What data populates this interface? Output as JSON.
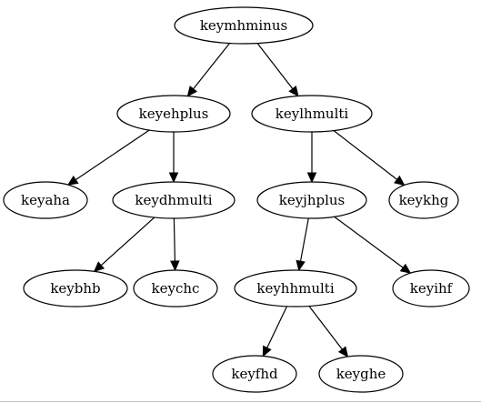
{
  "diagram": {
    "nodes": [
      {
        "id": "keymhminus",
        "label": "keymhminus"
      },
      {
        "id": "keyehplus",
        "label": "keyehplus"
      },
      {
        "id": "keylhmulti",
        "label": "keylhmulti"
      },
      {
        "id": "keyaha",
        "label": "keyaha"
      },
      {
        "id": "keydhmulti",
        "label": "keydhmulti"
      },
      {
        "id": "keyjhplus",
        "label": "keyjhplus"
      },
      {
        "id": "keykhg",
        "label": "keykhg"
      },
      {
        "id": "keybhb",
        "label": "keybhb"
      },
      {
        "id": "keychc",
        "label": "keychc"
      },
      {
        "id": "keyhhmulti",
        "label": "keyhhmulti"
      },
      {
        "id": "keyihf",
        "label": "keyihf"
      },
      {
        "id": "keyfhd",
        "label": "keyfhd"
      },
      {
        "id": "keyghe",
        "label": "keyghe"
      }
    ],
    "edges": [
      {
        "from": "keymhminus",
        "to": "keyehplus"
      },
      {
        "from": "keymhminus",
        "to": "keylhmulti"
      },
      {
        "from": "keyehplus",
        "to": "keyaha"
      },
      {
        "from": "keyehplus",
        "to": "keydhmulti"
      },
      {
        "from": "keydhmulti",
        "to": "keybhb"
      },
      {
        "from": "keydhmulti",
        "to": "keychc"
      },
      {
        "from": "keylhmulti",
        "to": "keyjhplus"
      },
      {
        "from": "keylhmulti",
        "to": "keykhg"
      },
      {
        "from": "keyjhplus",
        "to": "keyhhmulti"
      },
      {
        "from": "keyjhplus",
        "to": "keyihf"
      },
      {
        "from": "keyhhmulti",
        "to": "keyfhd"
      },
      {
        "from": "keyhhmulti",
        "to": "keyghe"
      }
    ]
  }
}
